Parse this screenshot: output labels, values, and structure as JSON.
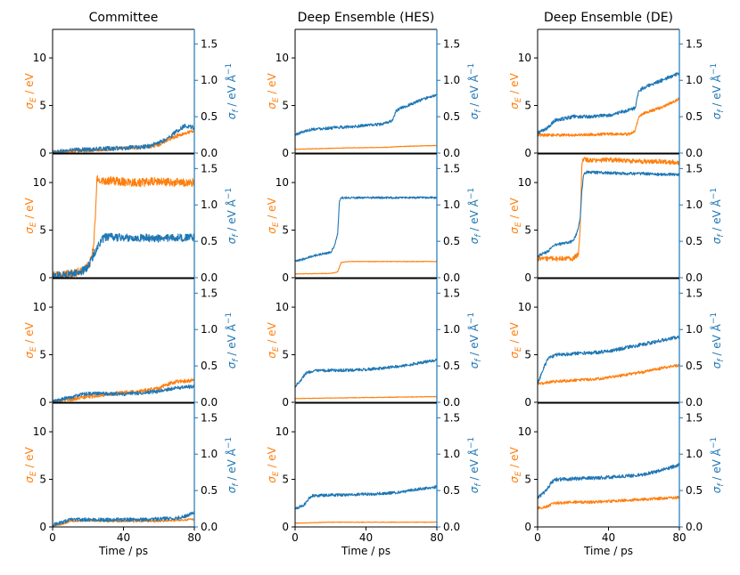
{
  "figure": {
    "colors": {
      "energy": "#ff7f0e",
      "force": "#1f77b4"
    },
    "columns": [
      {
        "title": "Committee"
      },
      {
        "title": "Deep Ensemble (HES)"
      },
      {
        "title": "Deep Ensemble (DE)"
      }
    ],
    "left_ylabel": {
      "base": "σ",
      "sub": "E",
      "unit": " / eV"
    },
    "right_ylabel": {
      "base": "σ",
      "sub": "f",
      "unit": " / eV Å",
      "sup": "−1"
    },
    "xlabel": "Time / ps",
    "xticks": [
      "0",
      "40",
      "80"
    ],
    "left_yticks": [
      "0",
      "5",
      "10"
    ],
    "right_yticks": [
      "0.0",
      "0.5",
      "1.0",
      "1.5"
    ]
  },
  "chart_data": [
    {
      "type": "line",
      "column": "Committee",
      "row": 1,
      "x_range": [
        0,
        80
      ],
      "left_ylim": [
        0,
        13
      ],
      "right_ylim": [
        0,
        1.7
      ],
      "series": [
        {
          "name": "σE / eV",
          "axis": "left",
          "x": [
            0,
            10,
            20,
            30,
            40,
            50,
            55,
            60,
            65,
            70,
            75,
            80
          ],
          "values": [
            0.1,
            0.2,
            0.3,
            0.4,
            0.5,
            0.6,
            0.7,
            0.9,
            1.4,
            1.8,
            2.1,
            2.3
          ],
          "noise": 0.2
        },
        {
          "name": "σf / eV Å⁻¹",
          "axis": "right",
          "x": [
            0,
            10,
            20,
            30,
            40,
            50,
            55,
            60,
            65,
            70,
            75,
            80
          ],
          "values": [
            0.01,
            0.04,
            0.05,
            0.06,
            0.07,
            0.08,
            0.1,
            0.14,
            0.2,
            0.3,
            0.38,
            0.35
          ],
          "noise": 0.03
        }
      ]
    },
    {
      "type": "line",
      "column": "Committee",
      "row": 2,
      "x_range": [
        0,
        80
      ],
      "left_ylim": [
        0,
        13
      ],
      "right_ylim": [
        0,
        1.7
      ],
      "series": [
        {
          "name": "σE / eV",
          "axis": "left",
          "x": [
            0,
            10,
            18,
            21,
            23,
            24,
            25,
            30,
            40,
            50,
            60,
            70,
            80
          ],
          "values": [
            0.2,
            0.4,
            0.8,
            1.5,
            3,
            6,
            10.3,
            10.2,
            10.1,
            10,
            10.1,
            10,
            10
          ],
          "noise": 0.45
        },
        {
          "name": "σf / eV Å⁻¹",
          "axis": "right",
          "x": [
            0,
            10,
            18,
            21,
            23,
            25,
            28,
            30,
            40,
            50,
            60,
            70,
            80
          ],
          "values": [
            0.02,
            0.05,
            0.1,
            0.2,
            0.3,
            0.42,
            0.52,
            0.56,
            0.55,
            0.55,
            0.54,
            0.55,
            0.55
          ],
          "noise": 0.055
        }
      ]
    },
    {
      "type": "line",
      "column": "Committee",
      "row": 3,
      "x_range": [
        0,
        80
      ],
      "left_ylim": [
        0,
        13
      ],
      "right_ylim": [
        0,
        1.7
      ],
      "series": [
        {
          "name": "σE / eV",
          "axis": "left",
          "x": [
            0,
            10,
            20,
            30,
            40,
            50,
            60,
            65,
            70,
            80
          ],
          "values": [
            0.1,
            0.3,
            0.6,
            0.8,
            1,
            1.2,
            1.5,
            1.9,
            2.2,
            2.3
          ],
          "noise": 0.2
        },
        {
          "name": "σf / eV Å⁻¹",
          "axis": "right",
          "x": [
            0,
            10,
            15,
            20,
            30,
            40,
            50,
            60,
            70,
            80
          ],
          "values": [
            0.01,
            0.07,
            0.1,
            0.12,
            0.12,
            0.11,
            0.13,
            0.15,
            0.2,
            0.22
          ],
          "noise": 0.025
        }
      ]
    },
    {
      "type": "line",
      "column": "Committee",
      "row": 4,
      "x_range": [
        0,
        80
      ],
      "left_ylim": [
        0,
        13
      ],
      "right_ylim": [
        0,
        1.7
      ],
      "series": [
        {
          "name": "σE / eV",
          "axis": "left",
          "x": [
            0,
            5,
            10,
            20,
            30,
            40,
            50,
            60,
            70,
            80
          ],
          "values": [
            0.1,
            0.3,
            0.6,
            0.7,
            0.6,
            0.6,
            0.6,
            0.6,
            0.7,
            0.8
          ],
          "noise": 0.1
        },
        {
          "name": "σf / eV Å⁻¹",
          "axis": "right",
          "x": [
            0,
            5,
            10,
            20,
            30,
            40,
            50,
            60,
            70,
            75,
            80
          ],
          "values": [
            0.03,
            0.06,
            0.1,
            0.1,
            0.1,
            0.1,
            0.1,
            0.11,
            0.12,
            0.15,
            0.2
          ],
          "noise": 0.025
        }
      ]
    },
    {
      "type": "line",
      "column": "Deep Ensemble (HES)",
      "row": 1,
      "x_range": [
        0,
        80
      ],
      "left_ylim": [
        0,
        13
      ],
      "right_ylim": [
        0,
        1.7
      ],
      "series": [
        {
          "name": "σE / eV",
          "axis": "left",
          "x": [
            0,
            10,
            30,
            50,
            60,
            70,
            80
          ],
          "values": [
            0.4,
            0.45,
            0.55,
            0.6,
            0.7,
            0.75,
            0.8
          ],
          "noise": 0.03
        },
        {
          "name": "σf / eV Å⁻¹",
          "axis": "right",
          "x": [
            0,
            5,
            10,
            30,
            50,
            55,
            57,
            60,
            70,
            80
          ],
          "values": [
            0.25,
            0.3,
            0.33,
            0.36,
            0.4,
            0.45,
            0.58,
            0.62,
            0.72,
            0.8
          ],
          "noise": 0.02
        }
      ]
    },
    {
      "type": "line",
      "column": "Deep Ensemble (HES)",
      "row": 2,
      "x_range": [
        0,
        80
      ],
      "left_ylim": [
        0,
        13
      ],
      "right_ylim": [
        0,
        1.7
      ],
      "series": [
        {
          "name": "σE / eV",
          "axis": "left",
          "x": [
            0,
            20,
            24,
            26,
            30,
            40,
            50,
            60,
            70,
            80
          ],
          "values": [
            0.4,
            0.45,
            0.6,
            1.6,
            1.7,
            1.7,
            1.7,
            1.7,
            1.7,
            1.7
          ],
          "noise": 0.03
        },
        {
          "name": "σf / eV Å⁻¹",
          "axis": "right",
          "x": [
            0,
            5,
            10,
            20,
            22,
            24,
            25,
            26,
            30,
            40,
            50,
            60,
            70,
            80
          ],
          "values": [
            0.22,
            0.26,
            0.3,
            0.35,
            0.42,
            0.6,
            1.05,
            1.1,
            1.1,
            1.1,
            1.1,
            1.1,
            1.1,
            1.1
          ],
          "noise": 0.015
        }
      ]
    },
    {
      "type": "line",
      "column": "Deep Ensemble (HES)",
      "row": 3,
      "x_range": [
        0,
        80
      ],
      "left_ylim": [
        0,
        13
      ],
      "right_ylim": [
        0,
        1.7
      ],
      "series": [
        {
          "name": "σE / eV",
          "axis": "left",
          "x": [
            0,
            20,
            40,
            60,
            80
          ],
          "values": [
            0.4,
            0.45,
            0.5,
            0.55,
            0.6
          ],
          "noise": 0.03
        },
        {
          "name": "σf / eV Å⁻¹",
          "axis": "right",
          "x": [
            0,
            3,
            6,
            10,
            20,
            30,
            40,
            50,
            60,
            70,
            80
          ],
          "values": [
            0.22,
            0.3,
            0.4,
            0.43,
            0.44,
            0.44,
            0.45,
            0.47,
            0.5,
            0.54,
            0.58
          ],
          "noise": 0.02
        }
      ]
    },
    {
      "type": "line",
      "column": "Deep Ensemble (HES)",
      "row": 4,
      "x_range": [
        0,
        80
      ],
      "left_ylim": [
        0,
        13
      ],
      "right_ylim": [
        0,
        1.7
      ],
      "series": [
        {
          "name": "σE / eV",
          "axis": "left",
          "x": [
            0,
            20,
            40,
            60,
            80
          ],
          "values": [
            0.4,
            0.5,
            0.5,
            0.5,
            0.5
          ],
          "noise": 0.03
        },
        {
          "name": "σf / eV Å⁻¹",
          "axis": "right",
          "x": [
            0,
            5,
            8,
            10,
            20,
            30,
            40,
            50,
            60,
            70,
            80
          ],
          "values": [
            0.25,
            0.3,
            0.4,
            0.43,
            0.44,
            0.44,
            0.45,
            0.46,
            0.48,
            0.52,
            0.55
          ],
          "noise": 0.02
        }
      ]
    },
    {
      "type": "line",
      "column": "Deep Ensemble (DE)",
      "row": 1,
      "x_range": [
        0,
        80
      ],
      "left_ylim": [
        0,
        13
      ],
      "right_ylim": [
        0,
        1.7
      ],
      "series": [
        {
          "name": "σE / eV",
          "axis": "left",
          "x": [
            0,
            20,
            40,
            52,
            55,
            57,
            60,
            70,
            80
          ],
          "values": [
            1.9,
            1.9,
            2,
            2,
            2.3,
            3.8,
            4.2,
            4.8,
            5.7
          ],
          "noise": 0.15
        },
        {
          "name": "σf / eV Å⁻¹",
          "axis": "right",
          "x": [
            0,
            5,
            10,
            20,
            30,
            40,
            50,
            55,
            57,
            60,
            70,
            80
          ],
          "values": [
            0.28,
            0.33,
            0.45,
            0.5,
            0.5,
            0.52,
            0.58,
            0.62,
            0.85,
            0.9,
            1.0,
            1.1
          ],
          "noise": 0.025
        }
      ]
    },
    {
      "type": "line",
      "column": "Deep Ensemble (DE)",
      "row": 2,
      "x_range": [
        0,
        80
      ],
      "left_ylim": [
        0,
        13
      ],
      "right_ylim": [
        0,
        1.7
      ],
      "series": [
        {
          "name": "σE / eV",
          "axis": "left",
          "x": [
            0,
            10,
            20,
            23,
            24,
            25,
            26,
            30,
            40,
            50,
            60,
            70,
            80
          ],
          "values": [
            2,
            2,
            2,
            2.5,
            5,
            12,
            12.5,
            12.3,
            12.4,
            12.3,
            12.2,
            12.2,
            12.1
          ],
          "noise": 0.25
        },
        {
          "name": "σf / eV Å⁻¹",
          "axis": "right",
          "x": [
            0,
            5,
            10,
            20,
            22,
            24,
            25,
            26,
            28,
            40,
            50,
            60,
            70,
            80
          ],
          "values": [
            0.3,
            0.35,
            0.45,
            0.5,
            0.6,
            0.8,
            1.2,
            1.42,
            1.45,
            1.44,
            1.43,
            1.43,
            1.42,
            1.42
          ],
          "noise": 0.02
        }
      ]
    },
    {
      "type": "line",
      "column": "Deep Ensemble (DE)",
      "row": 3,
      "x_range": [
        0,
        80
      ],
      "left_ylim": [
        0,
        13
      ],
      "right_ylim": [
        0,
        1.7
      ],
      "series": [
        {
          "name": "σE / eV",
          "axis": "left",
          "x": [
            0,
            3,
            6,
            10,
            20,
            30,
            40,
            50,
            60,
            70,
            80
          ],
          "values": [
            1.9,
            2,
            2.1,
            2.2,
            2.3,
            2.4,
            2.6,
            2.9,
            3.2,
            3.6,
            3.9
          ],
          "noise": 0.15
        },
        {
          "name": "σf / eV Å⁻¹",
          "axis": "right",
          "x": [
            0,
            3,
            6,
            10,
            20,
            30,
            40,
            50,
            60,
            70,
            80
          ],
          "values": [
            0.25,
            0.45,
            0.6,
            0.65,
            0.67,
            0.68,
            0.7,
            0.75,
            0.8,
            0.85,
            0.9
          ],
          "noise": 0.025
        }
      ]
    },
    {
      "type": "line",
      "column": "Deep Ensemble (DE)",
      "row": 4,
      "x_range": [
        0,
        80
      ],
      "left_ylim": [
        0,
        13
      ],
      "right_ylim": [
        0,
        1.7
      ],
      "series": [
        {
          "name": "σE / eV",
          "axis": "left",
          "x": [
            0,
            5,
            8,
            10,
            20,
            30,
            40,
            50,
            60,
            70,
            80
          ],
          "values": [
            2,
            2.1,
            2.4,
            2.5,
            2.6,
            2.6,
            2.7,
            2.8,
            2.9,
            3,
            3.1
          ],
          "noise": 0.15
        },
        {
          "name": "σf / eV Å⁻¹",
          "axis": "right",
          "x": [
            0,
            5,
            8,
            10,
            20,
            30,
            40,
            50,
            60,
            70,
            80
          ],
          "values": [
            0.4,
            0.5,
            0.62,
            0.65,
            0.66,
            0.67,
            0.68,
            0.7,
            0.72,
            0.78,
            0.85
          ],
          "noise": 0.025
        }
      ]
    }
  ]
}
